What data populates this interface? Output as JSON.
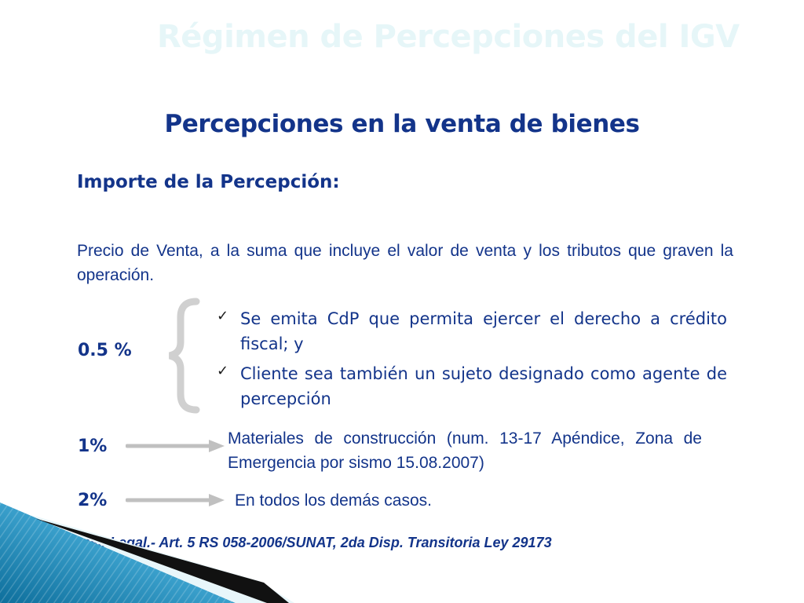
{
  "slide_title": "Régimen de Percepciones del IGV",
  "subtitle": "Percepciones en la venta de bienes",
  "heading": "Importe de la Percepción:",
  "intro": "Precio de Venta, a la suma que incluye el valor de venta y los tributos que graven la operación.",
  "rates": [
    {
      "label": "0.5 %",
      "conditions": [
        "Se emita CdP que permita ejercer el derecho a crédito fiscal; y",
        "Cliente sea también un sujeto designado como agente de percepción"
      ]
    },
    {
      "label": "1%",
      "description": "Materiales de construcción (num. 13-17 Apéndice, Zona de Emergencia por sismo 15.08.2007)"
    },
    {
      "label": "2%",
      "description": "En todos los demás casos."
    }
  ],
  "footer": "Base Legal.- Art. 5 RS 058-2006/SUNAT, 2da Disp. Transitoria Ley 29173",
  "icons": {
    "check": "check-icon",
    "arrow": "arrow-right-icon",
    "brace": "left-brace-icon"
  },
  "colors": {
    "text": "#13348a",
    "title": "#e6f6f8",
    "arrow": "#c0c0c0",
    "corner": "#1f86b4"
  }
}
